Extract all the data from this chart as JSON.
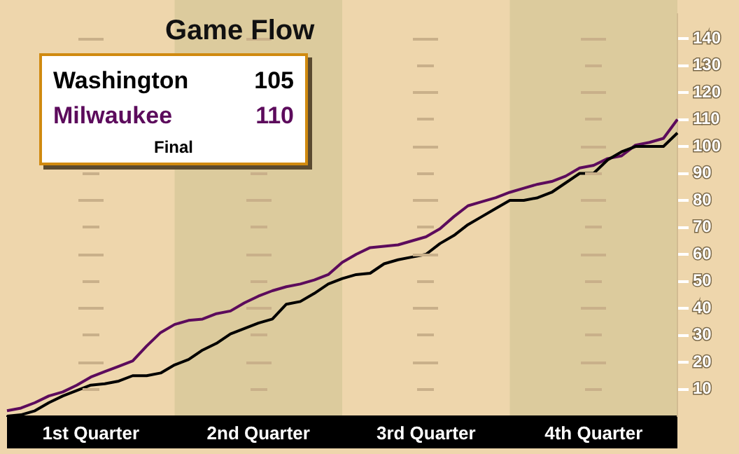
{
  "chart_data": {
    "type": "line",
    "title": "Game Flow",
    "annotations": [
      "105",
      "110",
      "Final"
    ],
    "categories": [
      null,
      null,
      null,
      null,
      null,
      null,
      "1st Quarter",
      null,
      null,
      null,
      null,
      null,
      null,
      null,
      null,
      null,
      null,
      null,
      "2nd Quarter",
      null,
      null,
      null,
      null,
      null,
      null,
      null,
      null,
      null,
      null,
      null,
      "3rd Quarter",
      null,
      null,
      null,
      null,
      null,
      null,
      null,
      null,
      null,
      null,
      null,
      "4th Quarter",
      null,
      null,
      null,
      null,
      null,
      null
    ],
    "ylim": [
      0,
      149
    ],
    "yticks": [
      10,
      20,
      30,
      40,
      50,
      60,
      70,
      80,
      90,
      100,
      110,
      120,
      130,
      140
    ],
    "legend": "top left",
    "marker": "none",
    "line_style": "solid",
    "series": [
      {
        "name": "Washington",
        "color": "#000000",
        "values": [
          0,
          0.5,
          2,
          5,
          7.5,
          9.5,
          11.5,
          12,
          13,
          15,
          15,
          16,
          19,
          21,
          24.5,
          27,
          30.5,
          32.5,
          34.5,
          36,
          41.5,
          42.5,
          45.5,
          49,
          51,
          52.5,
          53,
          56.5,
          58,
          59,
          60,
          64,
          67,
          71,
          74,
          77,
          80,
          80,
          81,
          83,
          86.5,
          90,
          90,
          95,
          98,
          100,
          100,
          100,
          105
        ]
      },
      {
        "name": "Milwaukee",
        "color": "#5c0b5c",
        "values": [
          2,
          3,
          5,
          7.5,
          9,
          11.5,
          14.5,
          16.5,
          18.5,
          20.5,
          26,
          31,
          34,
          35.5,
          36,
          38,
          39,
          42,
          44.5,
          46.5,
          48,
          49,
          50.5,
          52.5,
          57,
          60,
          62.5,
          63,
          63.5,
          65,
          66.5,
          69.5,
          74,
          78,
          79.5,
          81,
          83,
          84.5,
          86,
          87,
          89,
          92,
          93,
          95.5,
          96.5,
          100.5,
          101.5,
          103,
          110
        ]
      }
    ]
  }
}
